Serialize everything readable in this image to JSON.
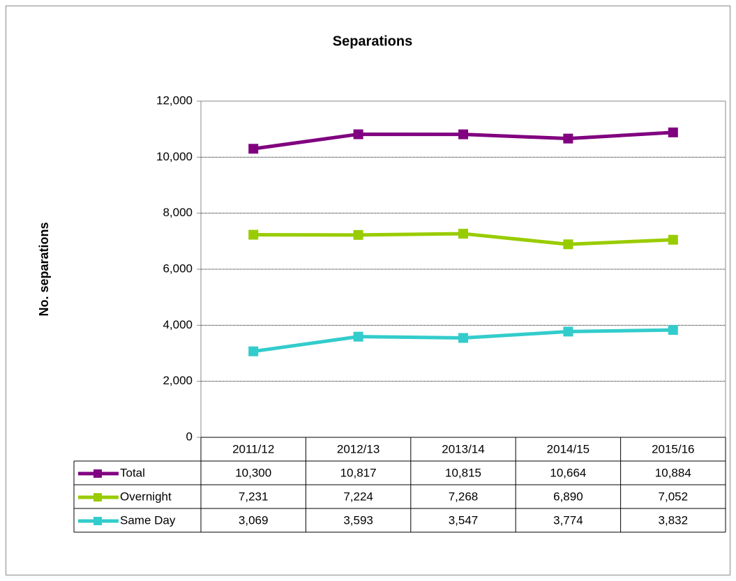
{
  "chart_data": {
    "type": "line",
    "title": "Separations",
    "y_label": "No. separations",
    "categories": [
      "2011/12",
      "2012/13",
      "2013/14",
      "2014/15",
      "2015/16"
    ],
    "series": [
      {
        "name": "Total",
        "color": "#800080",
        "values": [
          10300,
          10817,
          10815,
          10664,
          10884
        ],
        "value_labels": [
          "10,300",
          "10,817",
          "10,815",
          "10,664",
          "10,884"
        ]
      },
      {
        "name": "Overnight",
        "color": "#99cc00",
        "values": [
          7231,
          7224,
          7268,
          6890,
          7052
        ],
        "value_labels": [
          "7,231",
          "7,224",
          "7,268",
          "6,890",
          "7,052"
        ]
      },
      {
        "name": "Same Day",
        "color": "#33cccc",
        "values": [
          3069,
          3593,
          3547,
          3774,
          3832
        ],
        "value_labels": [
          "3,069",
          "3,593",
          "3,547",
          "3,774",
          "3,832"
        ]
      }
    ],
    "ylim": [
      0,
      12000
    ],
    "yticks": [
      0,
      {
        "value": 2000,
        "label": "2,000"
      },
      {
        "value": 4000,
        "label": "4,000"
      },
      {
        "value": 6000,
        "label": "6,000"
      },
      {
        "value": 8000,
        "label": "8,000"
      },
      {
        "value": 10000,
        "label": "10,000"
      },
      {
        "value": 12000,
        "label": "12,000"
      }
    ],
    "grid": true
  }
}
